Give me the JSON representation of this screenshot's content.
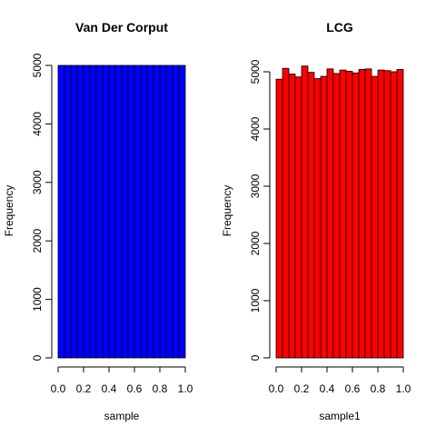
{
  "chart_data": [
    {
      "type": "bar",
      "title": "Van Der Corput",
      "xlabel": "sample",
      "ylabel": "Frequency",
      "bar_color": "#0000ff",
      "bin_edges": [
        0.0,
        0.05,
        0.1,
        0.15,
        0.2,
        0.25,
        0.3,
        0.35,
        0.4,
        0.45,
        0.5,
        0.55,
        0.6,
        0.65,
        0.7,
        0.75,
        0.8,
        0.85,
        0.9,
        0.95,
        1.0
      ],
      "values": [
        5000,
        5000,
        5000,
        5000,
        5000,
        5000,
        5000,
        5000,
        5000,
        5000,
        5000,
        5000,
        5000,
        5000,
        5000,
        5000,
        5000,
        5000,
        5000,
        5000
      ],
      "xlim": [
        0,
        1
      ],
      "ylim": [
        0,
        5000
      ],
      "x_ticks": [
        "0.0",
        "0.2",
        "0.4",
        "0.6",
        "0.8",
        "1.0"
      ],
      "y_ticks": [
        "0",
        "1000",
        "2000",
        "3000",
        "4000",
        "5000"
      ]
    },
    {
      "type": "bar",
      "title": "LCG",
      "xlabel": "sample1",
      "ylabel": "Frequency",
      "bar_color": "#ff0000",
      "bin_edges": [
        0.0,
        0.05,
        0.1,
        0.15,
        0.2,
        0.25,
        0.3,
        0.35,
        0.4,
        0.45,
        0.5,
        0.55,
        0.6,
        0.65,
        0.7,
        0.75,
        0.8,
        0.85,
        0.9,
        0.95,
        1.0
      ],
      "values": [
        4870,
        5060,
        4960,
        4910,
        5100,
        4990,
        4880,
        4920,
        5050,
        4970,
        5030,
        5010,
        4980,
        5040,
        5050,
        4920,
        5030,
        5020,
        5000,
        5040
      ],
      "xlim": [
        0,
        1
      ],
      "ylim": [
        0,
        5000
      ],
      "x_ticks": [
        "0.0",
        "0.2",
        "0.4",
        "0.6",
        "0.8",
        "1.0"
      ],
      "y_ticks": [
        "0",
        "1000",
        "2000",
        "3000",
        "4000",
        "5000"
      ]
    }
  ]
}
